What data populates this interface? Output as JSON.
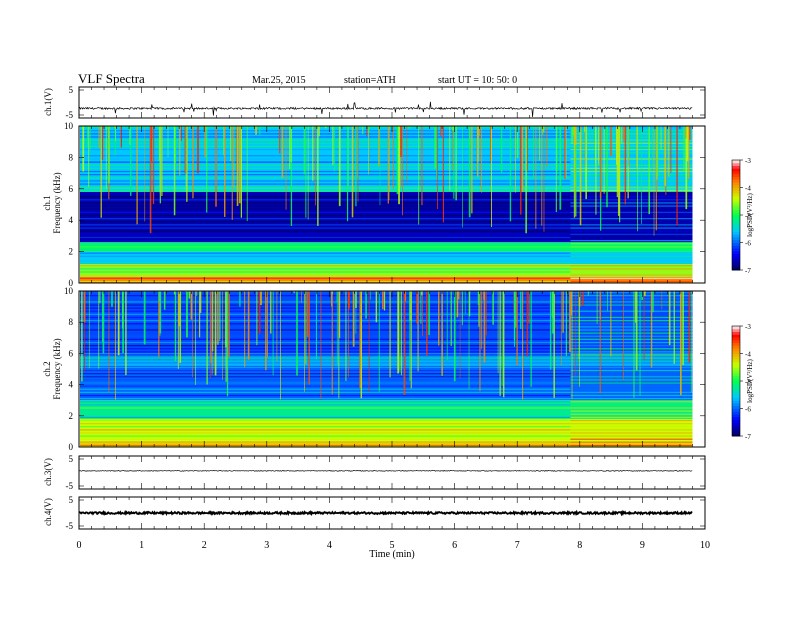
{
  "header": {
    "title": "VLF  Spectra",
    "date": "Mar.25, 2015",
    "station": "station=ATH",
    "start": "start  UT  =    10: 50: 0"
  },
  "chart_data": [
    {
      "type": "line",
      "panel": "ch1-waveform",
      "ylabel": "ch.1(V)",
      "ylim": [
        -5,
        5
      ],
      "yticks": [
        "5",
        "-5"
      ],
      "baseline_level": -1.9,
      "noise_amplitude": 0.3,
      "spike_min": -5
    },
    {
      "type": "heatmap",
      "panel": "ch1-spectrogram",
      "ylabel": "ch.1\nFrequency (kHz)",
      "ylabel_lines": [
        "ch.1",
        "Frequency  (kHz)"
      ],
      "ylim": [
        0,
        10
      ],
      "yticks": [
        "0",
        "2",
        "4",
        "6",
        "8",
        "10"
      ],
      "colorbar": {
        "label": "logPSD(V²/Hz)",
        "range": [
          -7,
          -3
        ],
        "ticks": [
          "-3",
          "-4",
          "-5",
          "-6",
          "-7"
        ]
      },
      "bands": [
        {
          "f0": 0.0,
          "f1": 0.4,
          "level": -3.8
        },
        {
          "f0": 0.4,
          "f1": 1.2,
          "level": -4.6
        },
        {
          "f0": 1.2,
          "f1": 2.0,
          "level": -5.6
        },
        {
          "f0": 2.0,
          "f1": 2.6,
          "level": -5.1
        },
        {
          "f0": 2.6,
          "f1": 5.8,
          "level": -6.7
        },
        {
          "f0": 5.8,
          "f1": 6.0,
          "level": -5.4
        },
        {
          "f0": 6.0,
          "f1": 10.0,
          "level": -5.6
        }
      ],
      "transition_minute": 7.85
    },
    {
      "type": "heatmap",
      "panel": "ch2-spectrogram",
      "ylabel_lines": [
        "ch.2",
        "Frequency  (kHz)"
      ],
      "ylim": [
        0,
        10
      ],
      "yticks": [
        "0",
        "2",
        "4",
        "6",
        "8",
        "10"
      ],
      "colorbar": {
        "label": "logPSD(V²/Hz)",
        "range": [
          -7,
          -3
        ],
        "ticks": [
          "-3",
          "-4",
          "-5",
          "-6",
          "-7"
        ]
      },
      "bands": [
        {
          "f0": 0.0,
          "f1": 0.4,
          "level": -4.2
        },
        {
          "f0": 0.4,
          "f1": 1.8,
          "level": -4.4
        },
        {
          "f0": 1.8,
          "f1": 3.0,
          "level": -5.2
        },
        {
          "f0": 3.0,
          "f1": 5.2,
          "level": -6.0
        },
        {
          "f0": 5.2,
          "f1": 6.0,
          "level": -5.8
        },
        {
          "f0": 6.0,
          "f1": 10.0,
          "level": -6.1
        }
      ],
      "transition_minute": 7.85
    },
    {
      "type": "line",
      "panel": "ch3-waveform",
      "ylabel": "ch.3(V)",
      "ylim": [
        -5,
        5
      ],
      "yticks": [
        "5",
        "-5"
      ],
      "baseline_level": 0.5,
      "noise_amplitude": 0.1
    },
    {
      "type": "line",
      "panel": "ch4-waveform",
      "ylabel": "ch.4(V)",
      "ylim": [
        -5,
        5
      ],
      "yticks": [
        "5",
        "-5"
      ],
      "baseline_level": 0,
      "noise_amplitude": 0.3
    }
  ],
  "xaxis": {
    "label": "Time  (min)",
    "range": [
      0,
      10
    ],
    "data_end": 9.8,
    "ticks": [
      "0",
      "1",
      "2",
      "3",
      "4",
      "5",
      "6",
      "7",
      "8",
      "9",
      "10"
    ]
  }
}
